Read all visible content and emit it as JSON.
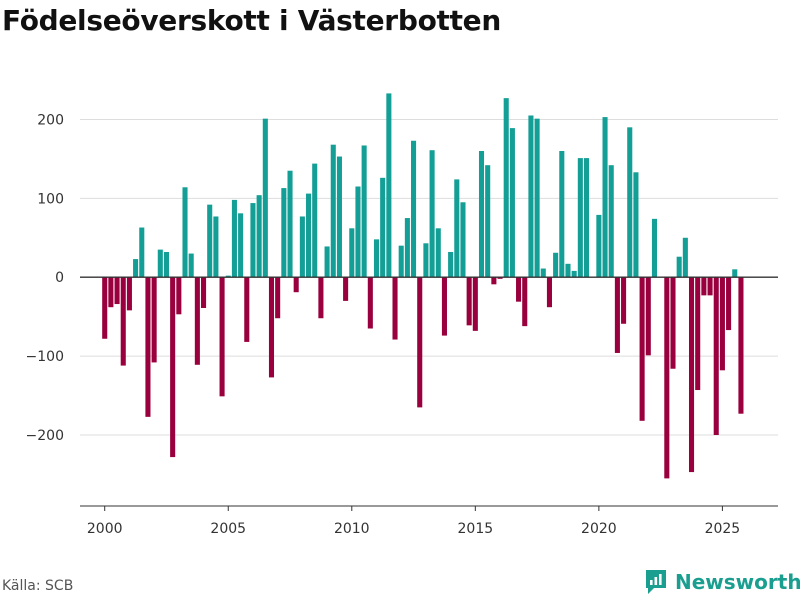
{
  "title": "Födelseöverskott i Västerbotten",
  "source": "Källa: SCB",
  "brand": {
    "name": "Newsworthy"
  },
  "colors": {
    "positive": "#139e96",
    "negative": "#99003d",
    "grid": "#dddddd",
    "zero": "#333333"
  },
  "chart_data": {
    "type": "bar",
    "title": "Födelseöverskott i Västerbotten",
    "xlabel": "",
    "ylabel": "",
    "ylim": [
      -290,
      250
    ],
    "xlim": [
      1999.0,
      2027.25
    ],
    "x_ticks": [
      2000,
      2005,
      2010,
      2015,
      2020,
      2025
    ],
    "x_tick_labels": [
      "2000",
      "2005",
      "2010",
      "2015",
      "2020",
      "2025"
    ],
    "y_ticks": [
      -200,
      -100,
      0,
      100,
      200
    ],
    "y_tick_labels": [
      "−200",
      "−100",
      "0",
      "100",
      "200"
    ],
    "grid": true,
    "series": [
      {
        "name": "Födelseöverskott",
        "x": [
          2000.0,
          2000.25,
          2000.5,
          2000.75,
          2001.0,
          2001.25,
          2001.5,
          2001.75,
          2002.0,
          2002.25,
          2002.5,
          2002.75,
          2003.0,
          2003.25,
          2003.5,
          2003.75,
          2004.0,
          2004.25,
          2004.5,
          2004.75,
          2005.0,
          2005.25,
          2005.5,
          2005.75,
          2006.0,
          2006.25,
          2006.5,
          2006.75,
          2007.0,
          2007.25,
          2007.5,
          2007.75,
          2008.0,
          2008.25,
          2008.5,
          2008.75,
          2009.0,
          2009.25,
          2009.5,
          2009.75,
          2010.0,
          2010.25,
          2010.5,
          2010.75,
          2011.0,
          2011.25,
          2011.5,
          2011.75,
          2012.0,
          2012.25,
          2012.5,
          2012.75,
          2013.0,
          2013.25,
          2013.5,
          2013.75,
          2014.0,
          2014.25,
          2014.5,
          2014.75,
          2015.0,
          2015.25,
          2015.5,
          2015.75,
          2016.0,
          2016.25,
          2016.5,
          2016.75,
          2017.0,
          2017.25,
          2017.5,
          2017.75,
          2018.0,
          2018.25,
          2018.5,
          2018.75,
          2019.0,
          2019.25,
          2019.5,
          2019.75,
          2020.0,
          2020.25,
          2020.5,
          2020.75,
          2021.0,
          2021.25,
          2021.5,
          2021.75,
          2022.0,
          2022.25,
          2022.5,
          2022.75,
          2023.0,
          2023.25,
          2023.5,
          2023.75,
          2024.0,
          2024.25,
          2024.5,
          2024.75,
          2025.0,
          2025.25,
          2025.5,
          2025.75
        ],
        "values": [
          -78,
          -38,
          -34,
          -112,
          -42,
          23,
          63,
          -177,
          -108,
          35,
          32,
          -228,
          -47,
          114,
          30,
          -111,
          -39,
          92,
          77,
          -151,
          2,
          98,
          81,
          -82,
          94,
          104,
          201,
          -127,
          -52,
          113,
          135,
          -19,
          77,
          106,
          144,
          -52,
          39,
          168,
          153,
          -30,
          62,
          115,
          167,
          -65,
          48,
          126,
          233,
          -79,
          40,
          75,
          173,
          -165,
          43,
          161,
          62,
          -74,
          32,
          124,
          95,
          -61,
          -68,
          160,
          142,
          -9,
          -2,
          227,
          189,
          -31,
          -62,
          205,
          201,
          11,
          -38,
          31,
          160,
          17,
          8,
          151,
          151,
          0,
          79,
          203,
          142,
          -96,
          -59,
          190,
          133,
          -182,
          -99,
          74,
          0,
          -255,
          -116,
          26,
          50,
          -247,
          -143,
          -23,
          -23,
          -200,
          -118,
          -67,
          10,
          -173
        ]
      }
    ]
  }
}
